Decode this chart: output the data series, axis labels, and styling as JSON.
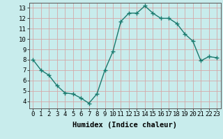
{
  "x": [
    0,
    1,
    2,
    3,
    4,
    5,
    6,
    7,
    8,
    9,
    10,
    11,
    12,
    13,
    14,
    15,
    16,
    17,
    18,
    19,
    20,
    21,
    22,
    23
  ],
  "y": [
    8.0,
    7.0,
    6.5,
    5.5,
    4.8,
    4.7,
    4.3,
    3.8,
    4.7,
    7.0,
    8.8,
    11.7,
    12.5,
    12.5,
    13.2,
    12.5,
    12.0,
    12.0,
    11.5,
    10.5,
    9.8,
    7.9,
    8.3,
    8.2
  ],
  "line_color": "#1a7a6e",
  "marker_color": "#1a7a6e",
  "bg_color": "#c8ecec",
  "grid_color": "#d4a8a8",
  "xlabel": "Humidex (Indice chaleur)",
  "xlim": [
    -0.5,
    23.5
  ],
  "ylim": [
    3.3,
    13.5
  ],
  "yticks": [
    4,
    5,
    6,
    7,
    8,
    9,
    10,
    11,
    12,
    13
  ],
  "xtick_labels": [
    "0",
    "1",
    "2",
    "3",
    "4",
    "5",
    "6",
    "7",
    "8",
    "9",
    "10",
    "11",
    "12",
    "13",
    "14",
    "15",
    "16",
    "17",
    "18",
    "19",
    "20",
    "21",
    "22",
    "23"
  ],
  "xlabel_fontsize": 7.5,
  "tick_fontsize": 6.5,
  "line_width": 1.0,
  "marker_size": 2.5
}
